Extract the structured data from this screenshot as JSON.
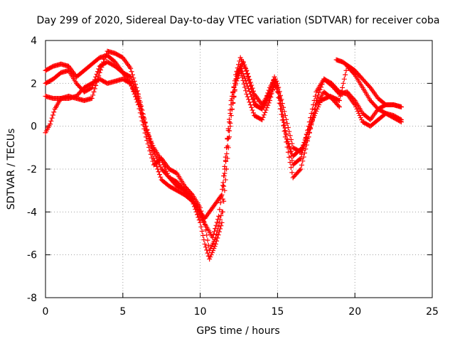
{
  "chart_data": {
    "type": "scatter",
    "title": "Day 299 of 2020, Sidereal Day-to-day VTEC variation (SDTVAR) for receiver coba",
    "xlabel": "GPS time / hours",
    "ylabel": "SDTVAR / TECUs",
    "xlim": [
      0,
      25
    ],
    "ylim": [
      -8,
      4
    ],
    "xticks": [
      0,
      5,
      10,
      15,
      20,
      25
    ],
    "yticks": [
      -8,
      -6,
      -4,
      -2,
      0,
      2,
      4
    ],
    "grid": true,
    "marker": "plus",
    "color": "#ff0000",
    "series": [
      {
        "points": [
          [
            0,
            2.6
          ],
          [
            0.5,
            2.8
          ],
          [
            1,
            2.9
          ],
          [
            1.5,
            2.8
          ],
          [
            2,
            2.3
          ],
          [
            2.5,
            2.6
          ],
          [
            3,
            2.9
          ],
          [
            3.5,
            3.2
          ],
          [
            4,
            3.3
          ],
          [
            4.5,
            3.0
          ],
          [
            5,
            2.5
          ],
          [
            5.5,
            2.0
          ],
          [
            6,
            1.2
          ],
          [
            6.5,
            0.0
          ],
          [
            7,
            -1.5
          ],
          [
            7.5,
            -2.5
          ],
          [
            8,
            -2.8
          ],
          [
            8.5,
            -3.0
          ],
          [
            9,
            -3.2
          ],
          [
            9.5,
            -3.5
          ],
          [
            10,
            -4.0
          ],
          [
            10.3,
            -4.3
          ],
          [
            10.6,
            -4.0
          ],
          [
            11,
            -3.6
          ],
          [
            11.4,
            -3.2
          ],
          [
            11.7,
            -1.0
          ],
          [
            12,
            1.0
          ],
          [
            12.3,
            2.4
          ],
          [
            12.6,
            3.2
          ],
          [
            13,
            2.6
          ],
          [
            13.5,
            1.5
          ],
          [
            14,
            1.0
          ],
          [
            14.5,
            1.6
          ],
          [
            14.8,
            2.3
          ],
          [
            15,
            2.0
          ],
          [
            15.5,
            0.5
          ],
          [
            16,
            -1.0
          ],
          [
            16.5,
            -1.2
          ],
          [
            17,
            -0.5
          ],
          [
            17.5,
            1.0
          ],
          [
            18,
            1.6
          ],
          [
            18.5,
            1.3
          ],
          [
            19,
            0.9
          ]
        ]
      },
      {
        "points": [
          [
            0,
            1.4
          ],
          [
            0.5,
            1.3
          ],
          [
            1,
            1.3
          ],
          [
            1.5,
            1.4
          ],
          [
            2,
            1.3
          ],
          [
            2.5,
            1.2
          ],
          [
            3,
            1.3
          ],
          [
            3.5,
            2.5
          ],
          [
            4,
            3.5
          ],
          [
            4.5,
            3.4
          ],
          [
            5,
            3.2
          ],
          [
            5.5,
            2.7
          ],
          [
            6,
            1.5
          ],
          [
            6.5,
            0.0
          ],
          [
            7,
            -1.2
          ],
          [
            7.5,
            -2.0
          ],
          [
            8,
            -2.4
          ],
          [
            8.5,
            -2.6
          ],
          [
            9,
            -3.0
          ],
          [
            9.5,
            -3.5
          ],
          [
            10,
            -4.5
          ],
          [
            10.3,
            -5.5
          ],
          [
            10.6,
            -6.2
          ],
          [
            11,
            -5.5
          ],
          [
            11.4,
            -4.5
          ],
          [
            11.7,
            -2.0
          ],
          [
            12,
            0.5
          ],
          [
            12.3,
            2.0
          ],
          [
            12.6,
            2.6
          ],
          [
            13,
            1.5
          ],
          [
            13.5,
            0.5
          ],
          [
            14,
            0.3
          ],
          [
            14.5,
            1.2
          ],
          [
            14.8,
            2.0
          ],
          [
            15,
            1.6
          ],
          [
            15.5,
            -0.5
          ],
          [
            16,
            -2.4
          ],
          [
            16.5,
            -2.0
          ],
          [
            17,
            -0.5
          ],
          [
            17.5,
            1.2
          ],
          [
            18,
            2.2
          ],
          [
            18.5,
            2.0
          ],
          [
            19,
            1.6
          ],
          [
            19.5,
            1.5
          ],
          [
            20,
            1.0
          ],
          [
            20.5,
            0.2
          ],
          [
            21,
            0.0
          ],
          [
            21.5,
            0.3
          ],
          [
            22,
            0.6
          ],
          [
            22.5,
            0.5
          ],
          [
            23,
            0.3
          ]
        ]
      },
      {
        "points": [
          [
            0,
            -0.3
          ],
          [
            0.3,
            0.1
          ],
          [
            0.6,
            0.8
          ],
          [
            1,
            1.3
          ],
          [
            1.5,
            1.3
          ],
          [
            2,
            1.4
          ],
          [
            2.5,
            1.8
          ],
          [
            3,
            2.0
          ],
          [
            3.5,
            2.2
          ],
          [
            4,
            2.0
          ],
          [
            4.5,
            2.1
          ],
          [
            5,
            2.2
          ],
          [
            5.5,
            2.0
          ],
          [
            6,
            1.0
          ],
          [
            6.5,
            -0.5
          ],
          [
            7,
            -1.8
          ],
          [
            7.5,
            -1.5
          ],
          [
            8,
            -2.0
          ],
          [
            8.5,
            -2.2
          ],
          [
            9,
            -2.8
          ],
          [
            9.5,
            -3.2
          ],
          [
            10,
            -3.8
          ],
          [
            10.3,
            -4.6
          ],
          [
            10.6,
            -5.8
          ],
          [
            11,
            -5.2
          ],
          [
            11.4,
            -4.0
          ],
          [
            11.7,
            -1.0
          ],
          [
            12,
            1.2
          ],
          [
            12.3,
            2.2
          ],
          [
            12.6,
            2.8
          ],
          [
            13,
            2.0
          ],
          [
            13.5,
            1.0
          ],
          [
            14,
            0.8
          ],
          [
            14.5,
            1.8
          ],
          [
            14.8,
            2.2
          ],
          [
            15,
            1.8
          ],
          [
            15.5,
            -0.2
          ],
          [
            16,
            -1.8
          ],
          [
            16.5,
            -1.5
          ],
          [
            17,
            0.0
          ],
          [
            17.5,
            1.6
          ],
          [
            18,
            2.2
          ],
          [
            18.5,
            1.9
          ],
          [
            19,
            1.5
          ],
          [
            19.5,
            1.6
          ],
          [
            20,
            1.2
          ],
          [
            20.5,
            0.6
          ],
          [
            21,
            0.3
          ],
          [
            21.5,
            0.8
          ],
          [
            22,
            1.0
          ],
          [
            22.5,
            1.0
          ],
          [
            23,
            0.9
          ]
        ]
      },
      {
        "points": [
          [
            0,
            2.0
          ],
          [
            0.5,
            2.2
          ],
          [
            1,
            2.5
          ],
          [
            1.5,
            2.6
          ],
          [
            2,
            2.0
          ],
          [
            2.5,
            1.6
          ],
          [
            3,
            1.8
          ],
          [
            3.5,
            2.8
          ],
          [
            4,
            3.0
          ],
          [
            4.5,
            2.8
          ],
          [
            5,
            2.5
          ],
          [
            5.5,
            2.3
          ],
          [
            6,
            1.4
          ],
          [
            6.5,
            -0.2
          ],
          [
            7,
            -1.0
          ],
          [
            7.5,
            -1.6
          ],
          [
            8,
            -2.4
          ],
          [
            8.5,
            -2.8
          ],
          [
            9,
            -3.0
          ],
          [
            9.5,
            -3.4
          ],
          [
            10,
            -4.2
          ],
          [
            10.5,
            -4.8
          ],
          [
            10.8,
            -5.2
          ],
          [
            11.2,
            -4.2
          ],
          [
            11.6,
            -2.0
          ],
          [
            12,
            0.5
          ],
          [
            12.4,
            2.5
          ],
          [
            12.8,
            3.0
          ],
          [
            13.2,
            2.0
          ],
          [
            13.6,
            1.0
          ],
          [
            14,
            0.8
          ],
          [
            14.5,
            1.4
          ],
          [
            14.9,
            2.1
          ],
          [
            15.2,
            1.2
          ],
          [
            15.6,
            -0.6
          ],
          [
            16,
            -1.4
          ],
          [
            16.6,
            -1.0
          ],
          [
            17.2,
            0.2
          ],
          [
            17.8,
            1.2
          ],
          [
            18.4,
            1.4
          ],
          [
            19,
            1.2
          ],
          [
            19.5,
            2.8
          ],
          [
            20,
            2.4
          ],
          [
            20.5,
            1.8
          ],
          [
            21,
            1.2
          ],
          [
            21.5,
            0.8
          ],
          [
            22,
            0.6
          ],
          [
            22.5,
            0.4
          ],
          [
            23,
            0.2
          ]
        ]
      },
      {
        "points": [
          [
            18.8,
            3.1
          ],
          [
            19.2,
            3.0
          ],
          [
            19.6,
            2.8
          ],
          [
            20,
            2.6
          ],
          [
            20.5,
            2.2
          ],
          [
            21,
            1.8
          ],
          [
            21.5,
            1.3
          ],
          [
            22,
            1.0
          ],
          [
            22.5,
            1.0
          ],
          [
            23,
            0.9
          ]
        ]
      }
    ]
  }
}
